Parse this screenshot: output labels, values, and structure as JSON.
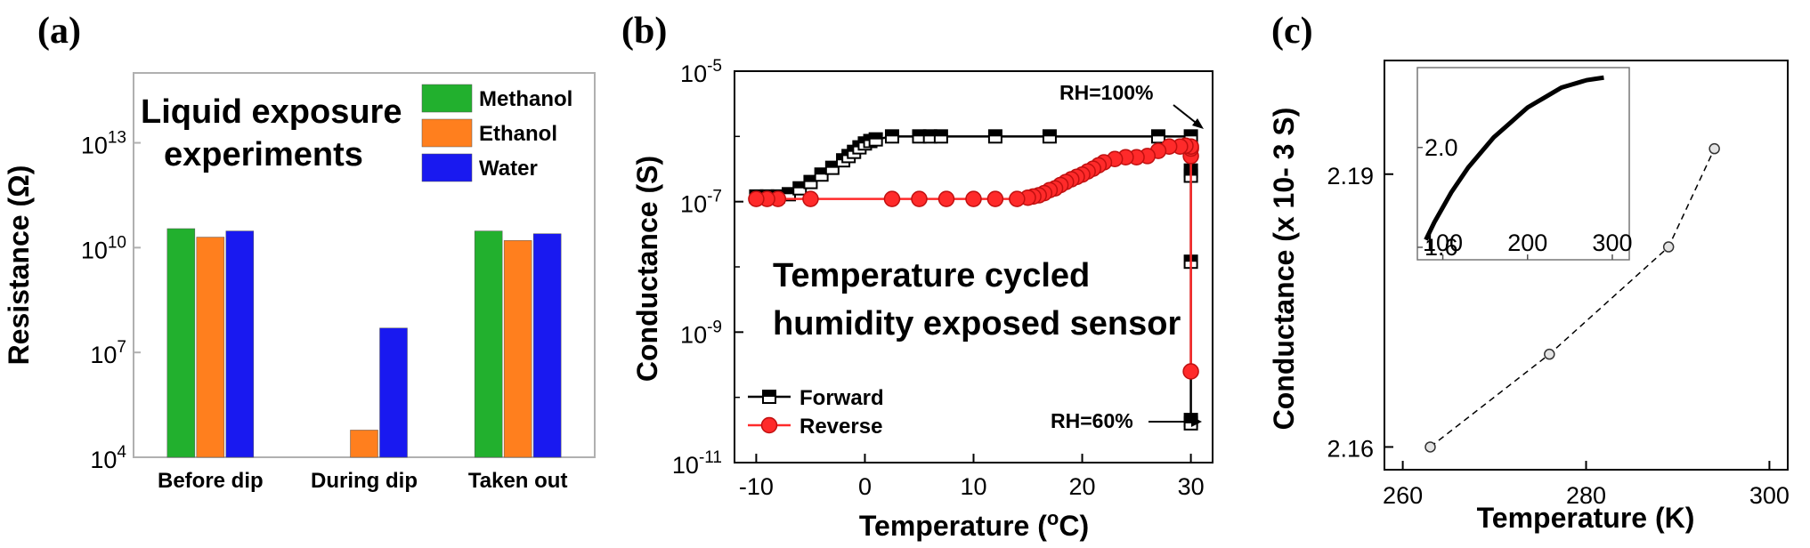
{
  "panels": [
    {
      "label": "(a)",
      "annotation": [
        "Liquid exposure",
        "experiments"
      ],
      "chart_data": {
        "type": "bar",
        "ylabel": "Resistance (Ω)",
        "yscale": "log",
        "ylim": [
          10000,
          1000000000000000.0
        ],
        "yticks": [
          {
            "value": 10000,
            "base": "10",
            "exp": "4"
          },
          {
            "value": 10000000.0,
            "base": "10",
            "exp": "7"
          },
          {
            "value": 10000000000.0,
            "base": "10",
            "exp": "10"
          },
          {
            "value": 10000000000000.0,
            "base": "10",
            "exp": "13"
          }
        ],
        "categories": [
          "Before dip",
          "During dip",
          "Taken out"
        ],
        "series": [
          {
            "name": "Methanol",
            "color": "#22b02e",
            "values": [
              35000000000.0,
              10000,
              30000000000.0
            ]
          },
          {
            "name": "Ethanol",
            "color": "#ff7f1e",
            "values": [
              20000000000.0,
              60000,
              16000000000.0
            ]
          },
          {
            "name": "Water",
            "color": "#1919f0",
            "values": [
              30000000000.0,
              50000000.0,
              25000000000.0
            ]
          }
        ],
        "legend_position": "top-right",
        "grid": false
      }
    },
    {
      "label": "(b)",
      "annotation": [
        "Temperature cycled",
        "humidity exposed sensor"
      ],
      "chart_data": {
        "type": "line",
        "xlabel": "Temperature (°C)",
        "xlabel_parts": {
          "prefix": "Temperature (",
          "sup": "o",
          "suffix": "C)"
        },
        "ylabel": "Conductance (S)",
        "xlim": [
          -12,
          32
        ],
        "xticks": [
          -10,
          0,
          10,
          20,
          30
        ],
        "yscale": "log",
        "ylim": [
          1e-11,
          1e-05
        ],
        "yticks": [
          {
            "value": 1e-11,
            "base": "10",
            "exp": "-11"
          },
          {
            "value": 1e-09,
            "base": "10",
            "exp": "-9"
          },
          {
            "value": 1e-07,
            "base": "10",
            "exp": "-7"
          },
          {
            "value": 1e-05,
            "base": "10",
            "exp": "-5"
          }
        ],
        "series": [
          {
            "name": "Forward",
            "color": "#000000",
            "marker": "square",
            "x": [
              -10,
              -9,
              -8,
              -7,
              -6,
              -5,
              -4,
              -3,
              -2,
              -1.5,
              -1,
              -0.5,
              0,
              0.5,
              1,
              2.5,
              5,
              6,
              7,
              12,
              17,
              27,
              30,
              30,
              30,
              30,
              30,
              30
            ],
            "y": [
              1.2e-07,
              1.2e-07,
              1.2e-07,
              1.3e-07,
              1.6e-07,
              2e-07,
              2.6e-07,
              3.3e-07,
              4.3e-07,
              5e-07,
              5.8e-07,
              6.8e-07,
              7.8e-07,
              8.5e-07,
              9e-07,
              1e-06,
              1e-06,
              1e-06,
              1e-06,
              1e-06,
              1e-06,
              1e-06,
              1e-06,
              3e-07,
              2.5e-07,
              1.2e-08,
              4.5e-11,
              4e-11
            ]
          },
          {
            "name": "Reverse",
            "color": "#ff2a2a",
            "marker": "circle",
            "x": [
              30,
              30,
              30,
              30,
              29.5,
              29,
              28,
              27,
              26,
              25,
              24,
              23,
              22,
              21.5,
              21,
              20.5,
              20,
              19.5,
              19,
              18.5,
              18,
              17.5,
              17,
              16.5,
              16,
              15.5,
              15,
              14,
              12,
              10,
              7.5,
              5,
              2.5,
              -5,
              -8,
              -9,
              -10
            ],
            "y": [
              2.5e-10,
              5e-07,
              6.5e-07,
              7e-07,
              7.2e-07,
              7e-07,
              7e-07,
              6e-07,
              5e-07,
              4.8e-07,
              4.8e-07,
              4.5e-07,
              4e-07,
              3.6e-07,
              3.2e-07,
              2.9e-07,
              2.6e-07,
              2.4e-07,
              2.2e-07,
              2e-07,
              1.8e-07,
              1.6e-07,
              1.5e-07,
              1.35e-07,
              1.25e-07,
              1.2e-07,
              1.15e-07,
              1.1e-07,
              1.1e-07,
              1.1e-07,
              1.1e-07,
              1.1e-07,
              1.1e-07,
              1.1e-07,
              1.1e-07,
              1.1e-07,
              1.1e-07
            ]
          }
        ],
        "annotations": [
          "RH=100%",
          "RH=60%"
        ],
        "legend_position": "bottom-left",
        "grid": false
      }
    },
    {
      "label": "(c)",
      "chart_data": {
        "type": "scatter",
        "xlabel": "Temperature (K)",
        "ylabel": "Conductance (x 10- 3 S)",
        "xlim": [
          258,
          302
        ],
        "xticks": [
          260,
          280,
          300
        ],
        "ylim": [
          2.1575,
          2.2025
        ],
        "yticks": [
          2.16,
          2.19
        ],
        "series": [
          {
            "name": "",
            "marker": "circle",
            "line": "dashed",
            "x": [
              263,
              276,
              289,
              294
            ],
            "y": [
              2.16,
              2.1702,
              2.182,
              2.1928
            ]
          }
        ],
        "inset": {
          "type": "line",
          "xlim": [
            70,
            320
          ],
          "xticks": [
            100,
            200,
            300
          ],
          "ylim": [
            1.55,
            2.32
          ],
          "yticks": [
            1.6,
            2.0
          ],
          "series": [
            {
              "name": "",
              "x": [
                80,
                90,
                100,
                110,
                120,
                130,
                140,
                150,
                160,
                170,
                180,
                190,
                200,
                210,
                220,
                230,
                240,
                250,
                260,
                270,
                280,
                290
              ],
              "y": [
                1.63,
                1.7,
                1.76,
                1.82,
                1.87,
                1.92,
                1.96,
                2.0,
                2.04,
                2.07,
                2.1,
                2.13,
                2.16,
                2.18,
                2.2,
                2.22,
                2.24,
                2.25,
                2.26,
                2.27,
                2.275,
                2.28
              ]
            }
          ]
        },
        "grid": false
      }
    }
  ]
}
